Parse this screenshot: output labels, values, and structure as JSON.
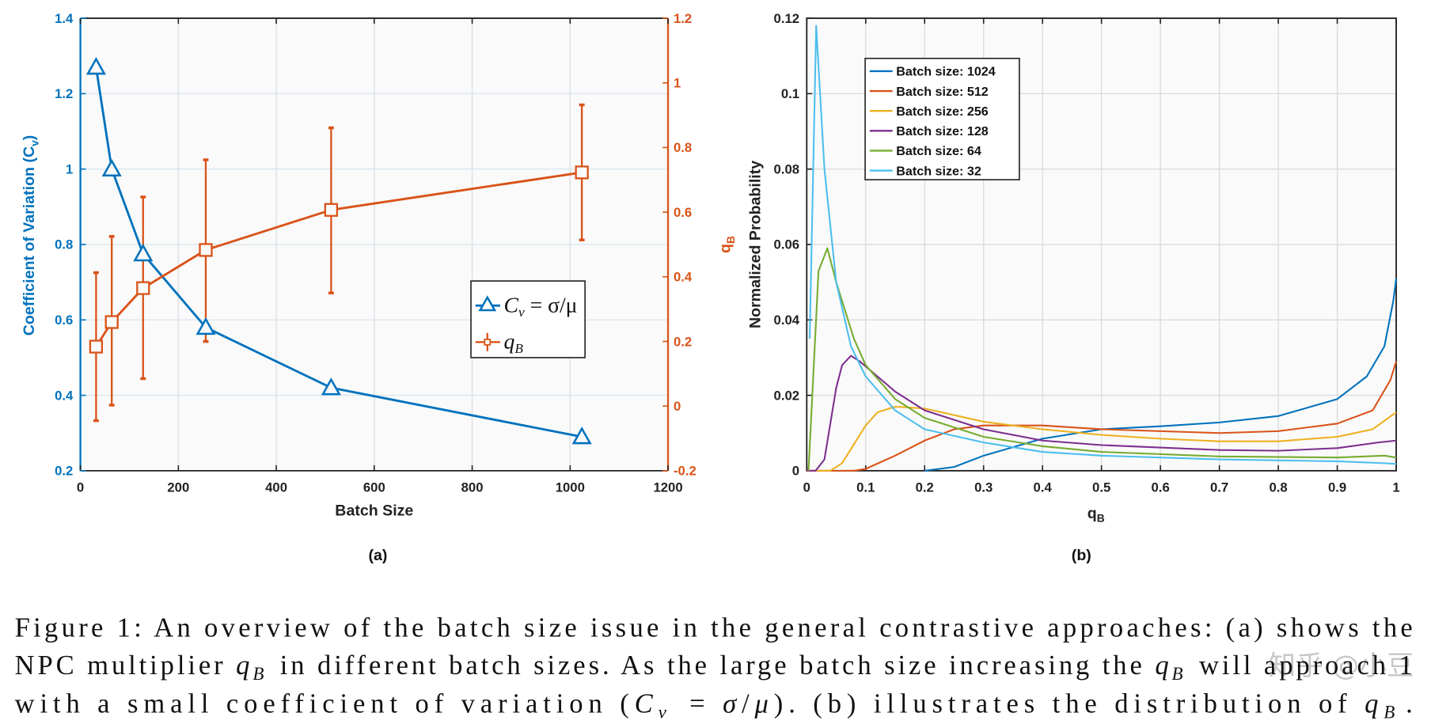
{
  "chart_data": [
    {
      "panel": "(a)",
      "type": "line",
      "xlabel": "Batch Size",
      "ylabel_left": "Coefficient of Variation (C",
      "ylabel_left_sub": "v",
      "ylabel_left_end": ")",
      "ylabel_right": "q",
      "ylabel_right_sub": "B",
      "xlim": [
        0,
        1200
      ],
      "ylim_left": [
        0.2,
        1.4
      ],
      "ylim_right": [
        -0.2,
        1.2
      ],
      "xticks": [
        0,
        200,
        400,
        600,
        800,
        1000,
        1200
      ],
      "yticks_left": [
        0.2,
        0.4,
        0.6,
        0.8,
        1,
        1.2,
        1.4
      ],
      "yticks_right": [
        -0.2,
        0,
        0.2,
        0.4,
        0.6,
        0.8,
        1,
        1.2
      ],
      "grid": true,
      "legend_placement": "center-right",
      "series": [
        {
          "name": "C_v = σ/μ",
          "legend_main": "C",
          "legend_sub": "v",
          "legend_rest": " = σ/μ",
          "axis": "left",
          "marker": "triangle",
          "color": "#0072BD",
          "x": [
            32,
            64,
            128,
            256,
            512,
            1024
          ],
          "y": [
            1.27,
            1.0,
            0.775,
            0.58,
            0.42,
            0.29
          ]
        },
        {
          "name": "q_B",
          "legend_main": "q",
          "legend_sub": "B",
          "axis": "right",
          "marker": "square",
          "color": "#D95319",
          "x": [
            32,
            64,
            128,
            256,
            512,
            1024
          ],
          "y": [
            0.184,
            0.26,
            0.365,
            0.483,
            0.607,
            0.723
          ],
          "err_low": [
            -0.045,
            0.003,
            0.085,
            0.2,
            0.35,
            0.514
          ],
          "err_high": [
            0.413,
            0.525,
            0.647,
            0.762,
            0.861,
            0.932
          ]
        }
      ]
    },
    {
      "panel": "(b)",
      "type": "line",
      "xlabel": "q",
      "xlabel_sub": "B",
      "ylabel": "Normalized Probability",
      "xlim": [
        0,
        1
      ],
      "ylim": [
        0,
        0.12
      ],
      "xticks": [
        0,
        0.1,
        0.2,
        0.3,
        0.4,
        0.5,
        0.6,
        0.7,
        0.8,
        0.9,
        1
      ],
      "yticks": [
        0,
        0.02,
        0.04,
        0.06,
        0.08,
        0.1,
        0.12
      ],
      "grid": true,
      "legend_placement": "top-left",
      "series": [
        {
          "name": "Batch size: 1024",
          "color": "#0072BD",
          "points": [
            [
              0.2,
              0
            ],
            [
              0.25,
              0.001
            ],
            [
              0.3,
              0.004
            ],
            [
              0.4,
              0.0085
            ],
            [
              0.5,
              0.011
            ],
            [
              0.6,
              0.0118
            ],
            [
              0.7,
              0.0128
            ],
            [
              0.8,
              0.0145
            ],
            [
              0.9,
              0.019
            ],
            [
              0.95,
              0.025
            ],
            [
              0.98,
              0.033
            ],
            [
              0.995,
              0.045
            ],
            [
              1.0,
              0.051
            ]
          ]
        },
        {
          "name": "Batch size: 512",
          "color": "#D95319",
          "points": [
            [
              0,
              0
            ],
            [
              0.08,
              0
            ],
            [
              0.1,
              0.0005
            ],
            [
              0.15,
              0.004
            ],
            [
              0.2,
              0.008
            ],
            [
              0.25,
              0.011
            ],
            [
              0.3,
              0.012
            ],
            [
              0.4,
              0.012
            ],
            [
              0.5,
              0.011
            ],
            [
              0.6,
              0.0105
            ],
            [
              0.7,
              0.01
            ],
            [
              0.8,
              0.0105
            ],
            [
              0.9,
              0.0125
            ],
            [
              0.96,
              0.016
            ],
            [
              0.99,
              0.024
            ],
            [
              1.0,
              0.029
            ]
          ]
        },
        {
          "name": "Batch size: 256",
          "color": "#EDB120",
          "points": [
            [
              0,
              0
            ],
            [
              0.04,
              0
            ],
            [
              0.06,
              0.002
            ],
            [
              0.1,
              0.012
            ],
            [
              0.12,
              0.0155
            ],
            [
              0.15,
              0.017
            ],
            [
              0.2,
              0.0165
            ],
            [
              0.3,
              0.013
            ],
            [
              0.4,
              0.011
            ],
            [
              0.5,
              0.0095
            ],
            [
              0.6,
              0.0085
            ],
            [
              0.7,
              0.0078
            ],
            [
              0.8,
              0.0078
            ],
            [
              0.9,
              0.009
            ],
            [
              0.96,
              0.011
            ],
            [
              1.0,
              0.0155
            ]
          ]
        },
        {
          "name": "Batch size: 128",
          "color": "#7E2F8E",
          "points": [
            [
              0,
              0
            ],
            [
              0.015,
              0
            ],
            [
              0.03,
              0.003
            ],
            [
              0.05,
              0.022
            ],
            [
              0.06,
              0.028
            ],
            [
              0.075,
              0.0305
            ],
            [
              0.09,
              0.029
            ],
            [
              0.12,
              0.025
            ],
            [
              0.15,
              0.021
            ],
            [
              0.2,
              0.016
            ],
            [
              0.3,
              0.011
            ],
            [
              0.4,
              0.008
            ],
            [
              0.5,
              0.0068
            ],
            [
              0.7,
              0.0055
            ],
            [
              0.8,
              0.0053
            ],
            [
              0.9,
              0.006
            ],
            [
              0.97,
              0.0075
            ],
            [
              1.0,
              0.008
            ]
          ]
        },
        {
          "name": "Batch size: 64",
          "color": "#77AC30",
          "points": [
            [
              0.003,
              0
            ],
            [
              0.02,
              0.053
            ],
            [
              0.035,
              0.059
            ],
            [
              0.05,
              0.05
            ],
            [
              0.08,
              0.035
            ],
            [
              0.1,
              0.028
            ],
            [
              0.15,
              0.019
            ],
            [
              0.2,
              0.014
            ],
            [
              0.3,
              0.009
            ],
            [
              0.4,
              0.0065
            ],
            [
              0.5,
              0.005
            ],
            [
              0.7,
              0.0038
            ],
            [
              0.9,
              0.0035
            ],
            [
              0.98,
              0.004
            ],
            [
              1.0,
              0.0035
            ]
          ]
        },
        {
          "name": "Batch size: 32",
          "color": "#4DBEEE",
          "points": [
            [
              0.005,
              0.035
            ],
            [
              0.016,
              0.118
            ],
            [
              0.03,
              0.08
            ],
            [
              0.05,
              0.05
            ],
            [
              0.075,
              0.033
            ],
            [
              0.1,
              0.025
            ],
            [
              0.15,
              0.016
            ],
            [
              0.2,
              0.011
            ],
            [
              0.3,
              0.0075
            ],
            [
              0.4,
              0.005
            ],
            [
              0.5,
              0.004
            ],
            [
              0.7,
              0.003
            ],
            [
              0.9,
              0.0025
            ],
            [
              0.98,
              0.002
            ],
            [
              1.0,
              0.0018
            ]
          ]
        }
      ]
    }
  ],
  "caption": {
    "lines": [
      [
        {
          "t": "Figure 1: An overview of the batch size issue in the general contrastive approaches: (a) shows the"
        }
      ],
      [
        {
          "t": "NPC multiplier "
        },
        {
          "m": "q",
          "s": "B"
        },
        {
          "t": " in different batch sizes. As the large batch size increasing the "
        },
        {
          "m": "q",
          "s": "B"
        },
        {
          "t": " will approach 1"
        }
      ],
      [
        {
          "t": "with a small coefficient of variation ("
        },
        {
          "m": "C",
          "s": "v"
        },
        {
          "t": " = "
        },
        {
          "m": "σ"
        },
        {
          "t": "/"
        },
        {
          "m": "μ"
        },
        {
          "t": "). (b) illustrates the distribution of "
        },
        {
          "m": "q",
          "s": "B"
        },
        {
          "t": "."
        }
      ]
    ]
  },
  "watermark": "知乎 @小豆"
}
